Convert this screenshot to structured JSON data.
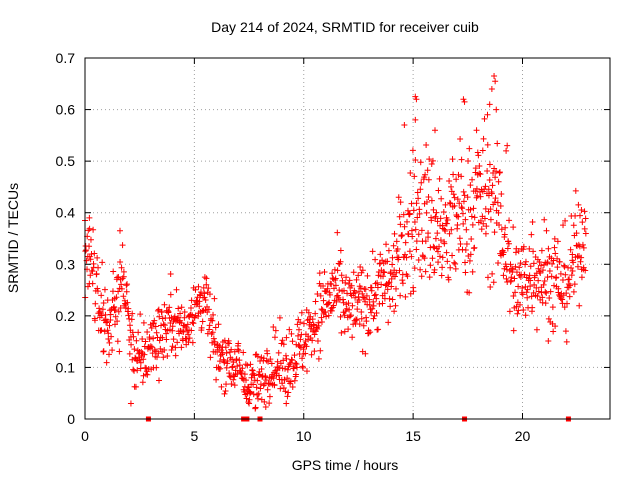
{
  "chart_data": {
    "type": "scatter",
    "title": "Day 214 of 2024, SRMTID for receiver cuib",
    "xlabel": "GPS time / hours",
    "ylabel": "SRMTID / TECUs",
    "xlim": [
      0,
      24
    ],
    "ylim": [
      0,
      0.7
    ],
    "xticks": [
      0,
      5,
      10,
      15,
      20
    ],
    "yticks": [
      0,
      0.1,
      0.2,
      0.3,
      0.4,
      0.5,
      0.6,
      0.7
    ],
    "grid": true,
    "series_color": "#ff0000",
    "marker": "plus",
    "trend": [
      [
        0.0,
        0.3
      ],
      [
        0.3,
        0.32
      ],
      [
        0.6,
        0.22
      ],
      [
        1.0,
        0.18
      ],
      [
        1.4,
        0.22
      ],
      [
        1.8,
        0.27
      ],
      [
        2.1,
        0.15
      ],
      [
        2.5,
        0.11
      ],
      [
        3.0,
        0.14
      ],
      [
        3.5,
        0.17
      ],
      [
        4.0,
        0.2
      ],
      [
        4.5,
        0.17
      ],
      [
        5.0,
        0.22
      ],
      [
        5.5,
        0.23
      ],
      [
        6.0,
        0.13
      ],
      [
        6.5,
        0.12
      ],
      [
        7.0,
        0.1
      ],
      [
        7.5,
        0.06
      ],
      [
        8.0,
        0.07
      ],
      [
        8.5,
        0.11
      ],
      [
        9.0,
        0.1
      ],
      [
        9.5,
        0.12
      ],
      [
        10.0,
        0.15
      ],
      [
        10.5,
        0.19
      ],
      [
        11.0,
        0.23
      ],
      [
        11.5,
        0.25
      ],
      [
        12.0,
        0.21
      ],
      [
        12.5,
        0.22
      ],
      [
        13.0,
        0.23
      ],
      [
        13.5,
        0.26
      ],
      [
        14.0,
        0.27
      ],
      [
        14.5,
        0.33
      ],
      [
        15.0,
        0.38
      ],
      [
        15.5,
        0.4
      ],
      [
        16.0,
        0.38
      ],
      [
        16.5,
        0.34
      ],
      [
        17.0,
        0.4
      ],
      [
        17.5,
        0.38
      ],
      [
        18.0,
        0.44
      ],
      [
        18.5,
        0.42
      ],
      [
        19.0,
        0.38
      ],
      [
        19.5,
        0.27
      ],
      [
        20.0,
        0.26
      ],
      [
        20.5,
        0.3
      ],
      [
        21.0,
        0.28
      ],
      [
        21.5,
        0.27
      ],
      [
        22.0,
        0.26
      ],
      [
        22.5,
        0.33
      ],
      [
        22.9,
        0.37
      ]
    ],
    "spread": [
      [
        0.0,
        0.06
      ],
      [
        3.0,
        0.05
      ],
      [
        7.0,
        0.04
      ],
      [
        10.0,
        0.05
      ],
      [
        14.0,
        0.06
      ],
      [
        15.0,
        0.1
      ],
      [
        18.0,
        0.1
      ],
      [
        19.5,
        0.08
      ],
      [
        22.9,
        0.07
      ]
    ],
    "peaks": [
      [
        15.1,
        0.625
      ],
      [
        15.15,
        0.62
      ],
      [
        17.3,
        0.62
      ],
      [
        17.35,
        0.615
      ],
      [
        18.5,
        0.61
      ],
      [
        18.6,
        0.64
      ],
      [
        18.7,
        0.665
      ],
      [
        18.75,
        0.655
      ],
      [
        18.8,
        0.6
      ],
      [
        16.0,
        0.56
      ],
      [
        15.1,
        0.58
      ],
      [
        14.6,
        0.57
      ],
      [
        17.9,
        0.56
      ],
      [
        18.4,
        0.59
      ],
      [
        19.3,
        0.53
      ],
      [
        19.25,
        0.52
      ],
      [
        0.2,
        0.39
      ],
      [
        0.0,
        0.385
      ],
      [
        1.6,
        0.365
      ],
      [
        6.1,
        0.1
      ],
      [
        2.1,
        0.03
      ],
      [
        9.2,
        0.03
      ],
      [
        7.5,
        0.03
      ]
    ],
    "zero_markers": [
      2.9,
      7.25,
      7.35,
      7.4,
      8.0,
      17.35,
      22.1
    ],
    "point_count": 1300
  }
}
